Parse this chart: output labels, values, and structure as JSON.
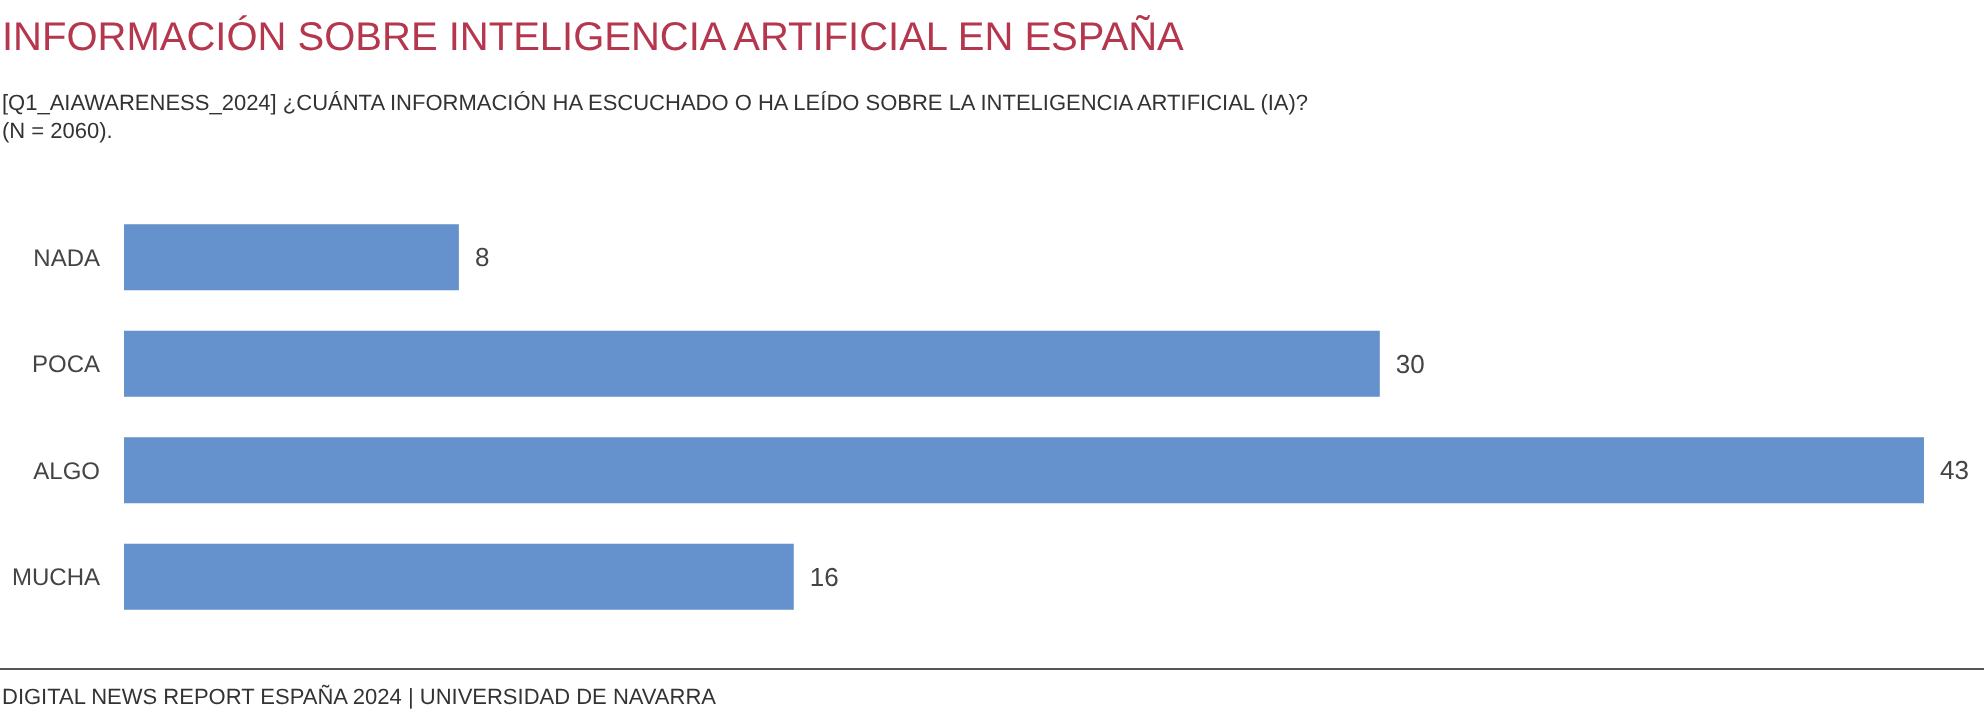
{
  "chart_data": {
    "type": "bar",
    "orientation": "horizontal",
    "title": "INFORMACIÓN SOBRE INTELIGENCIA ARTIFICIAL EN ESPAÑA",
    "subtitle": "[Q1_AIAWARENESS_2024] ¿CUÁNTA INFORMACIÓN HA ESCUCHADO O HA LEÍDO SOBRE LA INTELIGENCIA ARTIFICIAL (IA)?\n(N = 2060).",
    "categories": [
      "NADA",
      "POCA",
      "ALGO",
      "MUCHA"
    ],
    "values": [
      8,
      30,
      43,
      16
    ],
    "color": "#6592cd",
    "data_labels": true,
    "annotations": [
      "DIGITAL NEWS REPORT ESPAÑA 2024 | UNIVERSIDAD DE NAVARRA"
    ]
  }
}
